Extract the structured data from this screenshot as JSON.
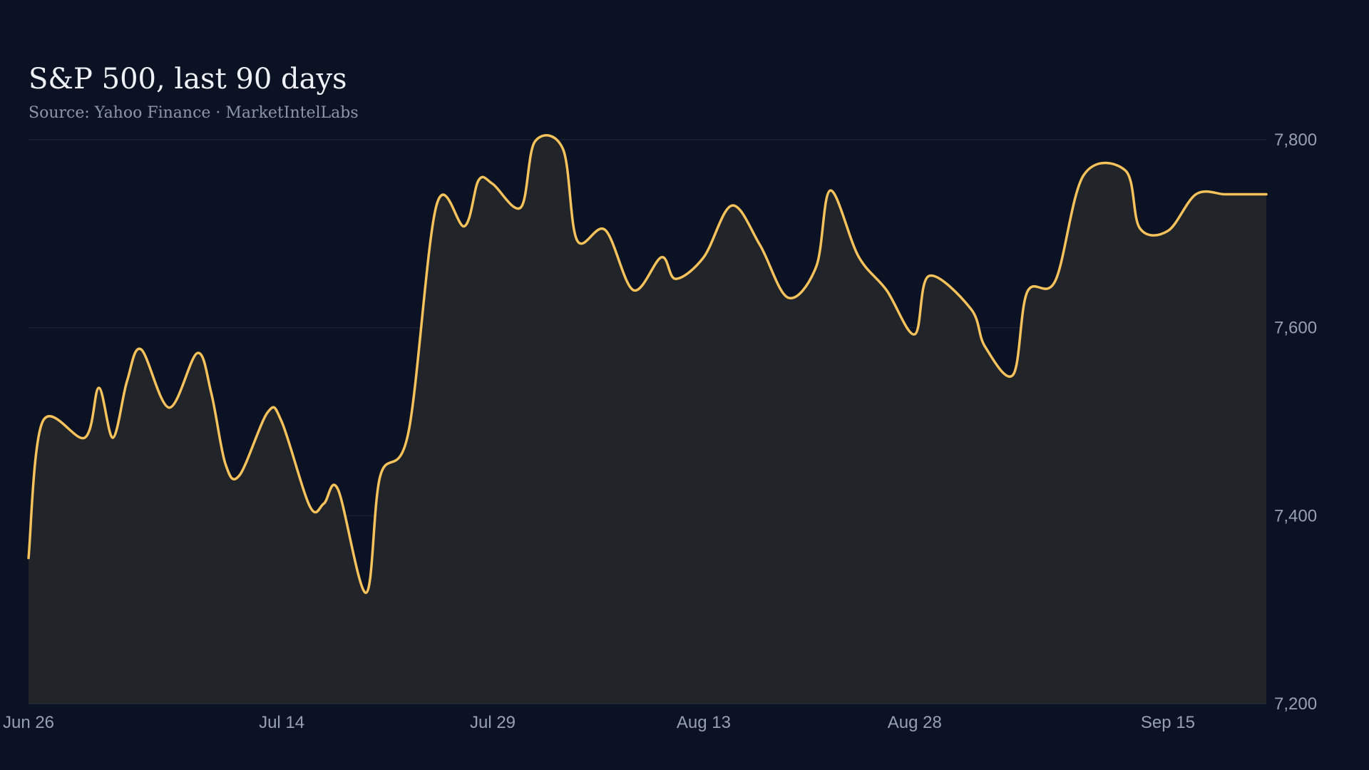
{
  "colors": {
    "background": "#0b1223",
    "line": "#f5c25c",
    "area": "#212428",
    "grid": "#1f2636",
    "title": "#eef1f6",
    "subtitle": "#8d96a8",
    "tick": "#97a0b2"
  },
  "chart_data": {
    "type": "area",
    "title": "S&P 500, last 90 days",
    "subtitle": "Source: Yahoo Finance · MarketIntelLabs",
    "xlabel": "",
    "ylabel": "",
    "ylim": [
      7200,
      7800
    ],
    "yticks": [
      7200,
      7400,
      7600,
      7800
    ],
    "ytick_labels": [
      "7,200",
      "7,400",
      "7,600",
      "7,800"
    ],
    "y_axis_position": "right",
    "grid": true,
    "legend": "none",
    "x_start": "2025-06-26",
    "x_end": "2025-09-22",
    "xticks": [
      "2025-06-26",
      "2025-07-14",
      "2025-07-29",
      "2025-08-13",
      "2025-08-28",
      "2025-09-15"
    ],
    "xtick_labels": [
      "Jun 26",
      "Jul 14",
      "Jul 29",
      "Aug 13",
      "Aug 28",
      "Sep 15"
    ],
    "series": [
      {
        "name": "",
        "x": [
          "2025-06-26",
          "2025-06-27",
          "2025-06-30",
          "2025-07-01",
          "2025-07-02",
          "2025-07-03",
          "2025-07-04",
          "2025-07-06",
          "2025-07-08",
          "2025-07-09",
          "2025-07-10",
          "2025-07-11",
          "2025-07-13",
          "2025-07-14",
          "2025-07-16",
          "2025-07-17",
          "2025-07-18",
          "2025-07-20",
          "2025-07-21",
          "2025-07-23",
          "2025-07-25",
          "2025-07-27",
          "2025-07-28",
          "2025-07-29",
          "2025-07-31",
          "2025-08-01",
          "2025-08-03",
          "2025-08-04",
          "2025-08-06",
          "2025-08-08",
          "2025-08-10",
          "2025-08-11",
          "2025-08-13",
          "2025-08-15",
          "2025-08-17",
          "2025-08-19",
          "2025-08-21",
          "2025-08-22",
          "2025-08-24",
          "2025-08-26",
          "2025-08-28",
          "2025-08-29",
          "2025-09-01",
          "2025-09-02",
          "2025-09-04",
          "2025-09-05",
          "2025-09-07",
          "2025-09-09",
          "2025-09-12",
          "2025-09-13",
          "2025-09-15",
          "2025-09-17",
          "2025-09-19",
          "2025-09-20",
          "2025-09-22"
        ],
        "values": [
          7355,
          7500,
          7483,
          7536,
          7483,
          7543,
          7577,
          7515,
          7573,
          7530,
          7455,
          7443,
          7510,
          7500,
          7410,
          7413,
          7428,
          7318,
          7442,
          7488,
          7730,
          7708,
          7757,
          7753,
          7728,
          7798,
          7790,
          7693,
          7704,
          7640,
          7675,
          7652,
          7675,
          7730,
          7688,
          7632,
          7665,
          7746,
          7676,
          7640,
          7593,
          7655,
          7620,
          7580,
          7550,
          7638,
          7650,
          7762,
          7767,
          7706,
          7703,
          7742,
          7742,
          7742,
          7742
        ]
      }
    ]
  }
}
